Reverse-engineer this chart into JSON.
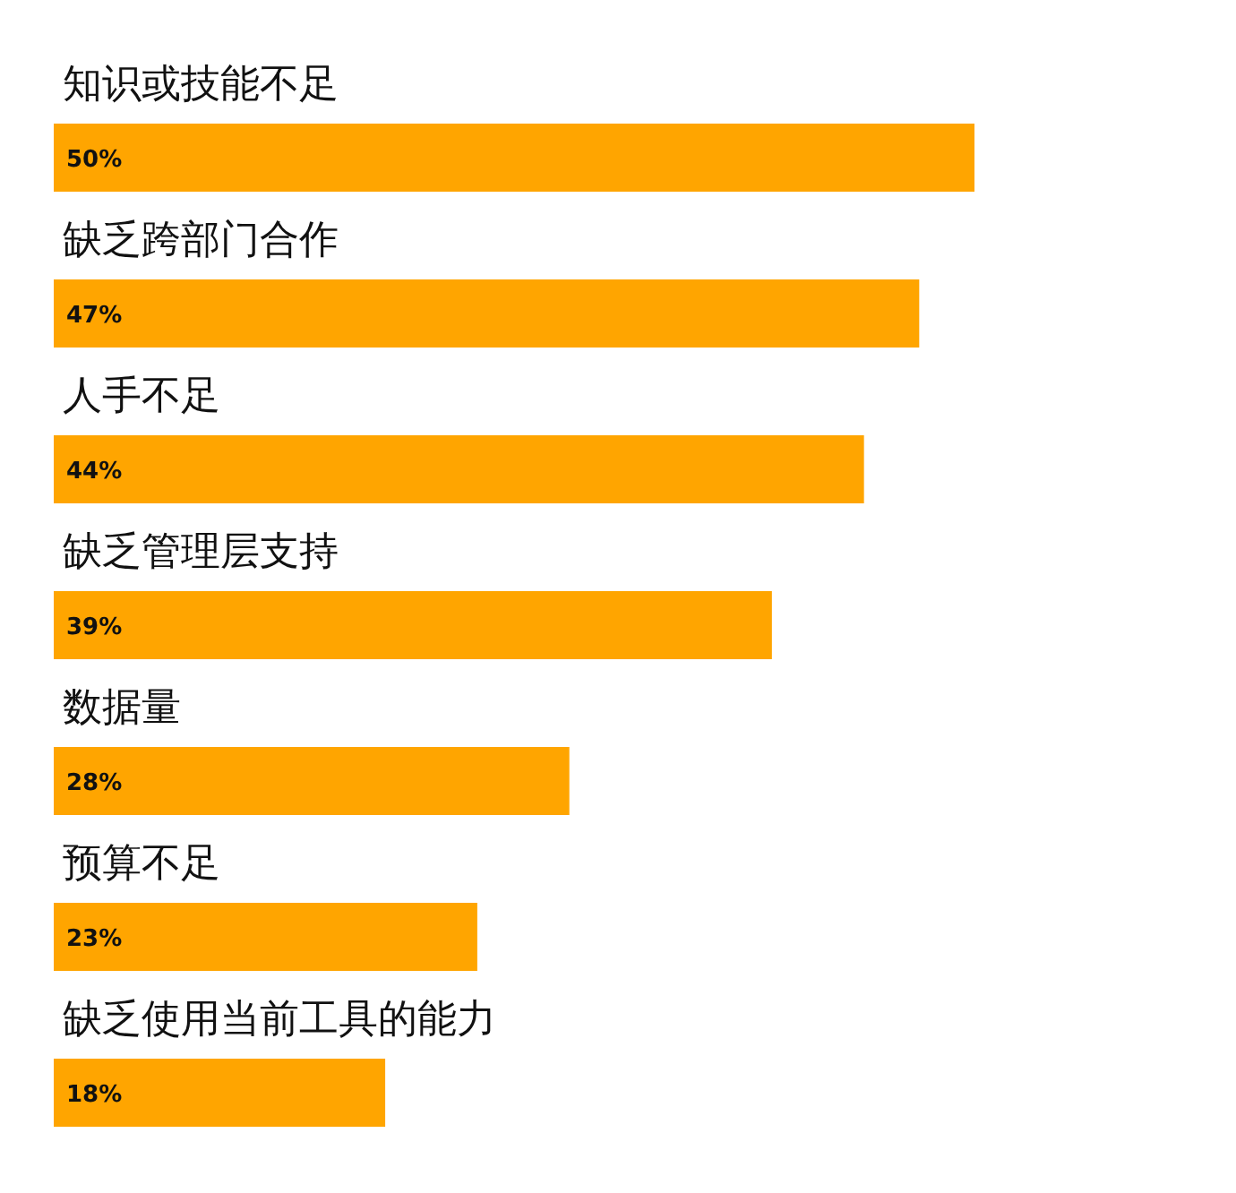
{
  "chart_data": {
    "type": "bar",
    "orientation": "horizontal",
    "color": "#ffa500",
    "categories": [
      "知识或技能不足",
      "缺乏跨部门合作",
      "人手不足",
      "缺乏管理层支持",
      "数据量",
      "预算不足",
      "缺乏使用当前工具的能力"
    ],
    "values": [
      50,
      47,
      44,
      39,
      28,
      23,
      18
    ],
    "value_labels": [
      "50%",
      "47%",
      "44%",
      "39%",
      "28%",
      "23%",
      "18%"
    ]
  }
}
